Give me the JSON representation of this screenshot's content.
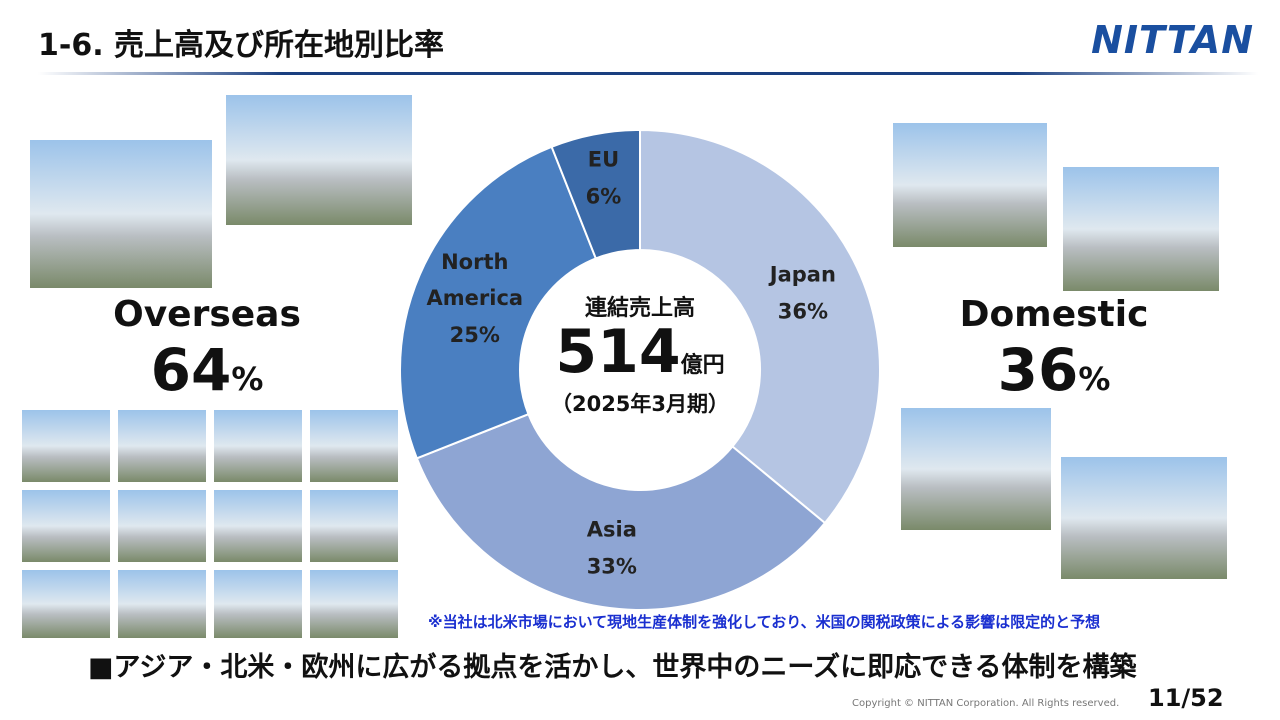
{
  "header": {
    "title": "1-6. 売上高及び所在地別比率",
    "logo": "NITTAN"
  },
  "chart_data": {
    "type": "pie",
    "categories": [
      "Japan",
      "Asia",
      "North America",
      "EU"
    ],
    "values": [
      36,
      33,
      25,
      6
    ],
    "value_labels": [
      "36%",
      "33%",
      "25%",
      "6%"
    ],
    "colors": [
      "#b5c5e3",
      "#8ea5d3",
      "#4a7fc1",
      "#3b6aa8"
    ],
    "donut": true
  },
  "center": {
    "caption": "連結売上高",
    "amount": "514",
    "unit": "億円",
    "period": "（2025年3月期）"
  },
  "overseas": {
    "label": "Overseas",
    "value": "64",
    "unit": "%"
  },
  "domestic": {
    "label": "Domestic",
    "value": "36",
    "unit": "%"
  },
  "note": "※当社は北米市場において現地生産体制を強化しており、米国の関税政策による影響は限定的と予想",
  "footer": {
    "message": "■アジア・北米・欧州に広がる拠点を活かし、世界中のニーズに即応できる体制を構築",
    "copyright": "Copyright © NITTAN Corporation. All Rights reserved.",
    "page": "11/52"
  }
}
